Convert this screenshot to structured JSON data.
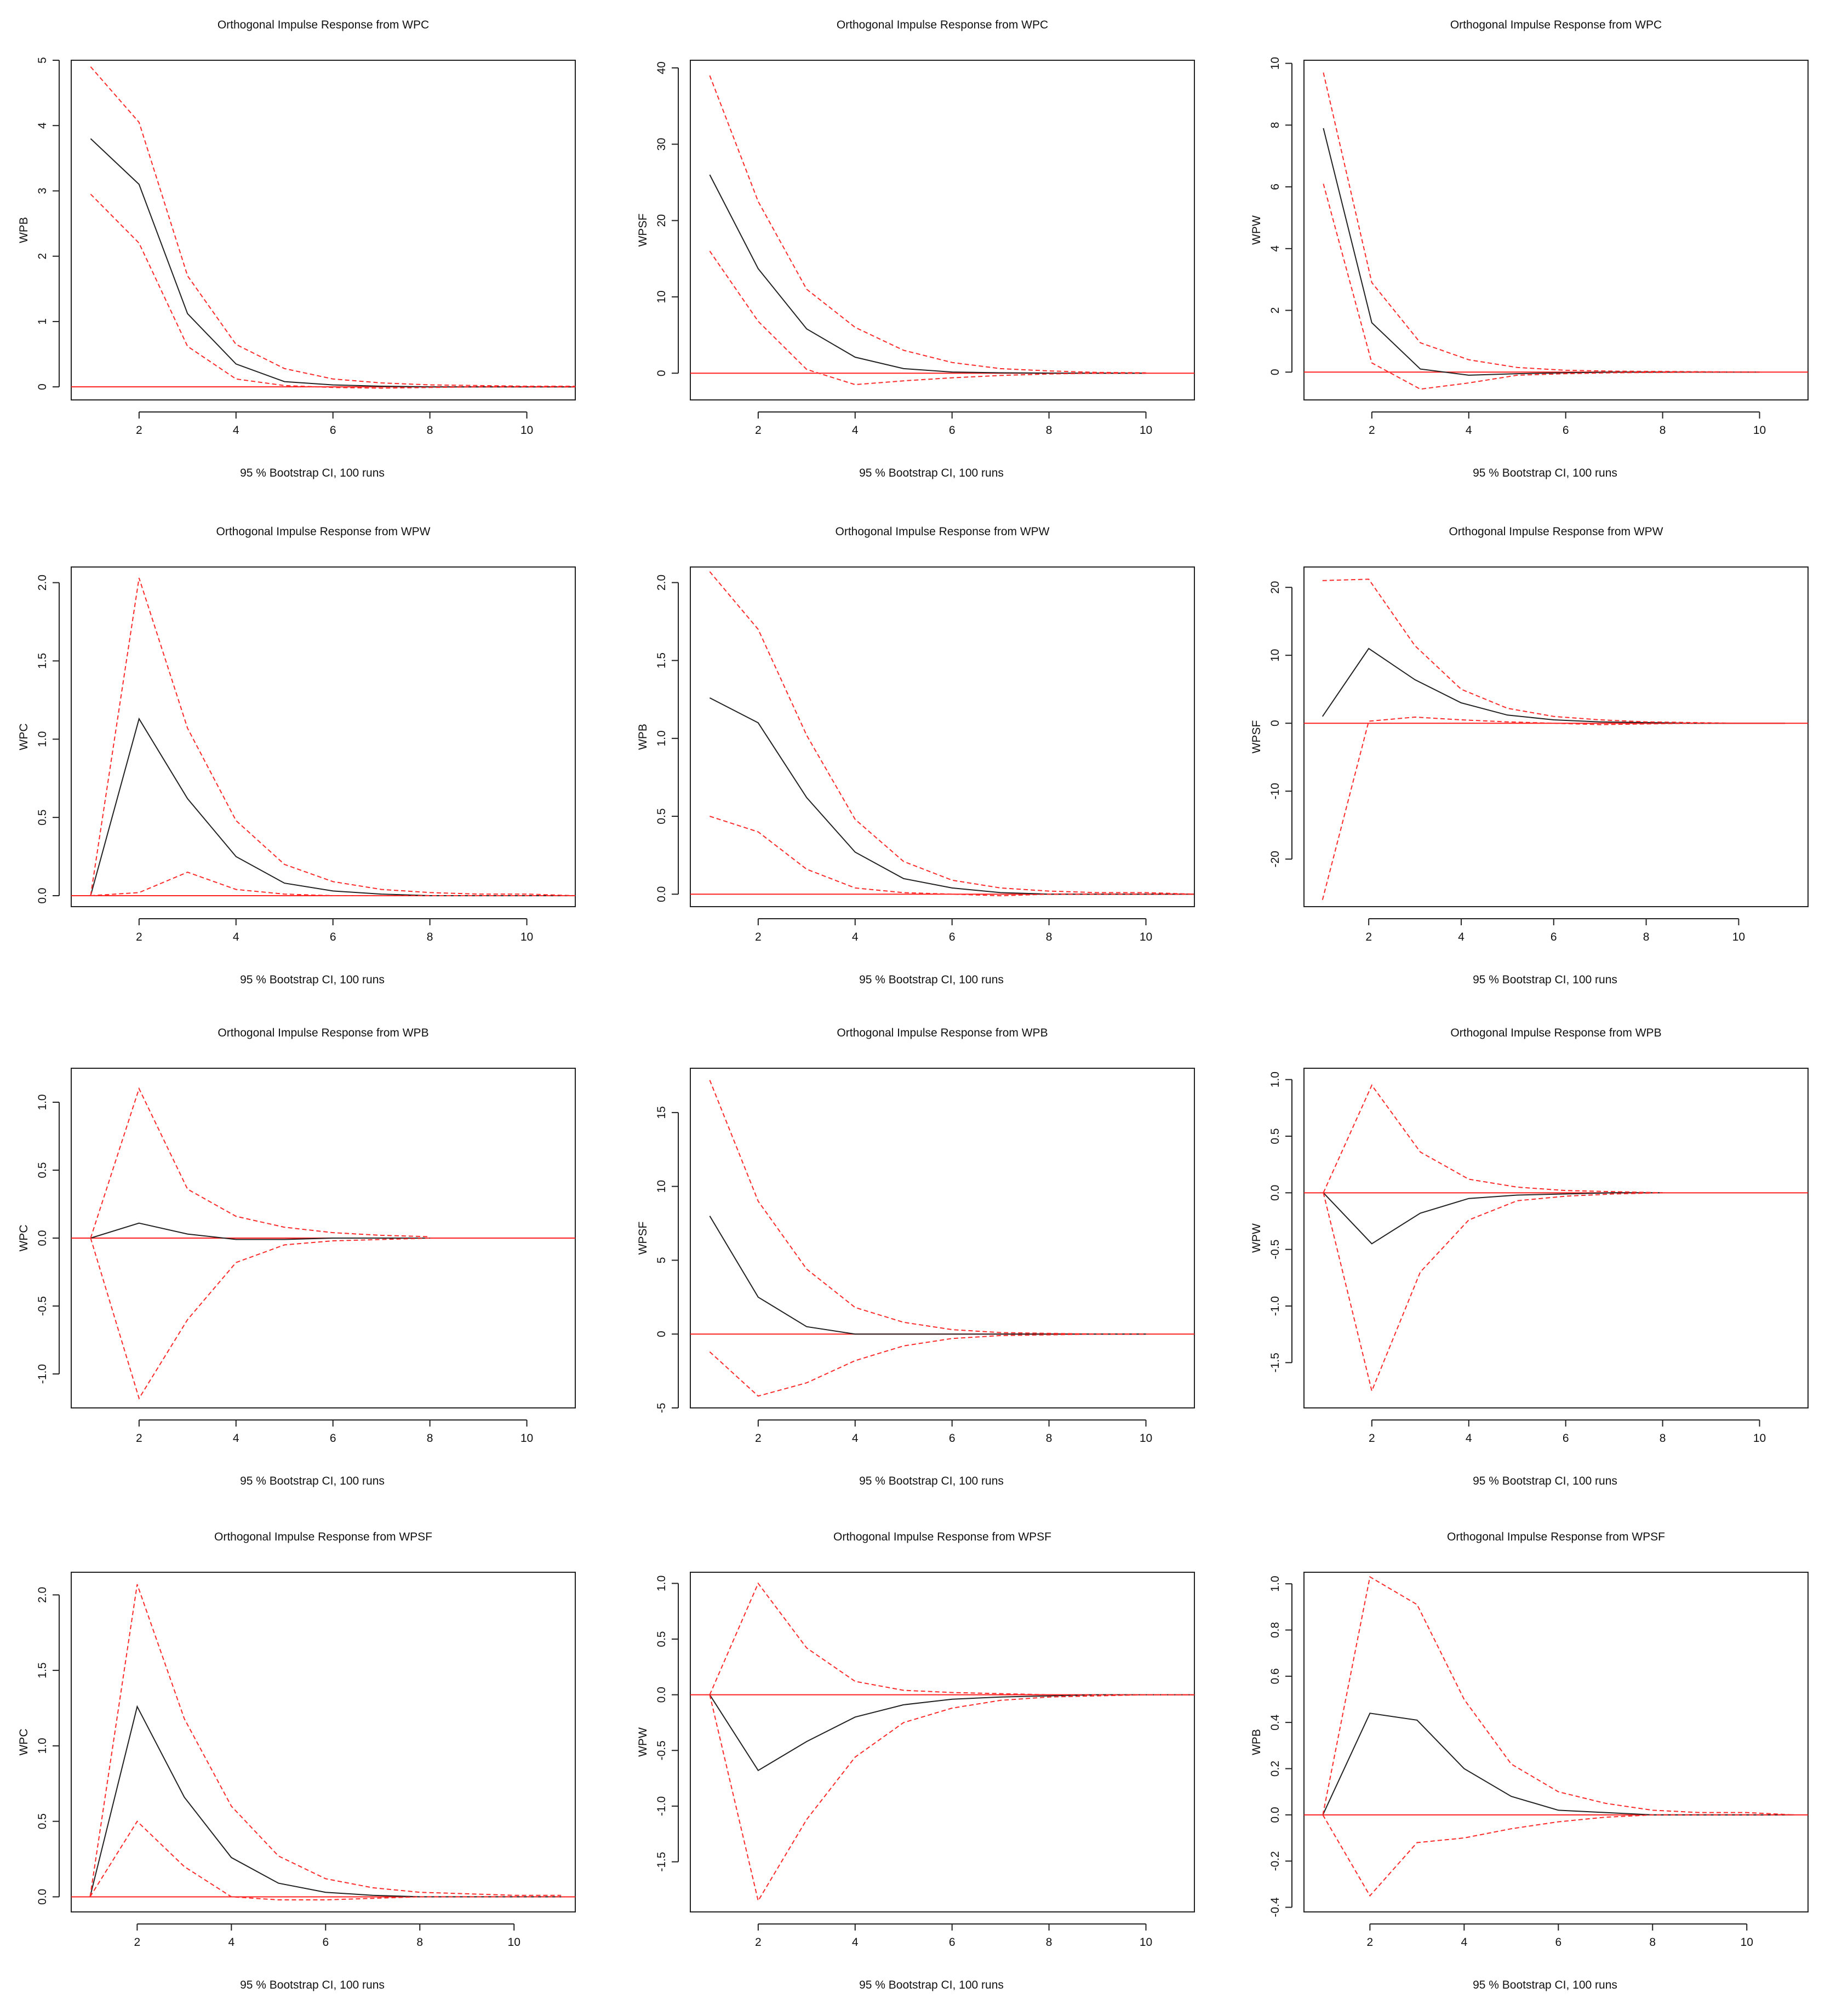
{
  "chart_data": [
    {
      "type": "line",
      "title": "Orthogonal Impulse Response from WPC",
      "ylabel": "WPB",
      "xlabel": "95 % Bootstrap CI,  100 runs",
      "xlim": [
        0.6,
        11
      ],
      "ylim": [
        -0.2,
        5
      ],
      "xticks": [
        2,
        4,
        6,
        8,
        10
      ],
      "yticks": [
        0,
        1,
        2,
        3,
        4,
        5
      ],
      "ytick_labels": [
        "0",
        "1",
        "2",
        "3",
        "4",
        "5"
      ],
      "x": [
        1,
        2,
        3,
        4,
        5,
        6,
        7,
        8,
        9,
        10,
        11
      ],
      "series": [
        {
          "name": "response",
          "values": [
            3.8,
            3.1,
            1.12,
            0.35,
            0.08,
            0.03,
            0.01,
            0,
            0,
            0,
            0
          ]
        },
        {
          "name": "upper",
          "values": [
            4.9,
            4.05,
            1.7,
            0.65,
            0.28,
            0.12,
            0.06,
            0.03,
            0.02,
            0.01,
            0.01
          ]
        },
        {
          "name": "lower",
          "values": [
            2.95,
            2.2,
            0.62,
            0.12,
            0.02,
            -0.01,
            -0.02,
            -0.01,
            0,
            0,
            0
          ]
        }
      ]
    },
    {
      "type": "line",
      "title": "Orthogonal Impulse Response from WPC",
      "ylabel": "WPSF",
      "xlabel": "95 % Bootstrap CI,  100 runs",
      "xlim": [
        0.6,
        11
      ],
      "ylim": [
        -3.5,
        41
      ],
      "xticks": [
        2,
        4,
        6,
        8,
        10
      ],
      "yticks": [
        0,
        10,
        20,
        30,
        40
      ],
      "ytick_labels": [
        "0",
        "10",
        "20",
        "30",
        "40"
      ],
      "x": [
        1,
        2,
        3,
        4,
        5,
        6,
        7,
        8,
        9,
        10
      ],
      "series": [
        {
          "name": "response",
          "values": [
            26,
            13.7,
            5.8,
            2.1,
            0.6,
            0.15,
            0.05,
            0.01,
            0,
            0
          ]
        },
        {
          "name": "upper",
          "values": [
            39,
            22.5,
            11,
            6,
            3,
            1.4,
            0.6,
            0.3,
            0.1,
            0.05
          ]
        },
        {
          "name": "lower",
          "values": [
            16,
            6.8,
            0.5,
            -1.5,
            -1,
            -0.6,
            -0.3,
            -0.1,
            0,
            0
          ]
        }
      ]
    },
    {
      "type": "line",
      "title": "Orthogonal Impulse Response from WPC",
      "ylabel": "WPW",
      "xlabel": "95 % Bootstrap CI,  100 runs",
      "xlim": [
        0.6,
        11
      ],
      "ylim": [
        -0.9,
        10.1
      ],
      "xticks": [
        2,
        4,
        6,
        8,
        10
      ],
      "yticks": [
        0,
        2,
        4,
        6,
        8,
        10
      ],
      "ytick_labels": [
        "0",
        "2",
        "4",
        "6",
        "8",
        "10"
      ],
      "x": [
        1,
        2,
        3,
        4,
        5,
        6,
        7,
        8,
        9,
        10
      ],
      "series": [
        {
          "name": "response",
          "values": [
            7.9,
            1.6,
            0.1,
            -0.1,
            -0.05,
            -0.02,
            0,
            0,
            0,
            0
          ]
        },
        {
          "name": "upper",
          "values": [
            9.7,
            2.9,
            0.95,
            0.4,
            0.15,
            0.06,
            0.03,
            0.02,
            0.01,
            0
          ]
        },
        {
          "name": "lower",
          "values": [
            6.1,
            0.3,
            -0.55,
            -0.35,
            -0.1,
            -0.05,
            -0.02,
            -0.01,
            0,
            0
          ]
        }
      ]
    },
    {
      "type": "line",
      "title": "Orthogonal Impulse Response from WPW",
      "ylabel": "WPC",
      "xlabel": "95 % Bootstrap CI,  100 runs",
      "xlim": [
        0.6,
        11
      ],
      "ylim": [
        -0.07,
        2.1
      ],
      "xticks": [
        2,
        4,
        6,
        8,
        10
      ],
      "yticks": [
        0,
        0.5,
        1,
        1.5,
        2
      ],
      "ytick_labels": [
        "0.0",
        "0.5",
        "1.0",
        "1.5",
        "2.0"
      ],
      "x": [
        1,
        2,
        3,
        4,
        5,
        6,
        7,
        8,
        9,
        10,
        11
      ],
      "series": [
        {
          "name": "response",
          "values": [
            0,
            1.13,
            0.62,
            0.25,
            0.08,
            0.03,
            0.01,
            0,
            0,
            0,
            0
          ]
        },
        {
          "name": "upper",
          "values": [
            0,
            2.03,
            1.07,
            0.48,
            0.2,
            0.09,
            0.04,
            0.02,
            0.01,
            0.01,
            0
          ]
        },
        {
          "name": "lower",
          "values": [
            0,
            0.02,
            0.15,
            0.04,
            0.01,
            0,
            0,
            0,
            0,
            0,
            0
          ]
        }
      ]
    },
    {
      "type": "line",
      "title": "Orthogonal Impulse Response from WPW",
      "ylabel": "WPB",
      "xlabel": "95 % Bootstrap CI,  100 runs",
      "xlim": [
        0.6,
        11
      ],
      "ylim": [
        -0.08,
        2.1
      ],
      "xticks": [
        2,
        4,
        6,
        8,
        10
      ],
      "yticks": [
        0,
        0.5,
        1,
        1.5,
        2
      ],
      "ytick_labels": [
        "0.0",
        "0.5",
        "1.0",
        "1.5",
        "2.0"
      ],
      "x": [
        1,
        2,
        3,
        4,
        5,
        6,
        7,
        8,
        9,
        10,
        11
      ],
      "series": [
        {
          "name": "response",
          "values": [
            1.26,
            1.1,
            0.62,
            0.27,
            0.1,
            0.04,
            0.01,
            0,
            0,
            0,
            0
          ]
        },
        {
          "name": "upper",
          "values": [
            2.07,
            1.7,
            1.02,
            0.48,
            0.21,
            0.09,
            0.04,
            0.02,
            0.01,
            0.01,
            0
          ]
        },
        {
          "name": "lower",
          "values": [
            0.5,
            0.4,
            0.16,
            0.04,
            0.01,
            0,
            -0.01,
            0,
            0,
            0,
            0
          ]
        }
      ]
    },
    {
      "type": "line",
      "title": "Orthogonal Impulse Response from WPW",
      "ylabel": "WPSF",
      "xlabel": "95 % Bootstrap CI,  100 runs",
      "xlim": [
        0.6,
        11.5
      ],
      "ylim": [
        -27,
        23
      ],
      "xticks": [
        2,
        4,
        6,
        8,
        10
      ],
      "yticks": [
        -20,
        -10,
        0,
        10,
        20
      ],
      "ytick_labels": [
        "-20",
        "-10",
        "0",
        "10",
        "20"
      ],
      "x": [
        1,
        2,
        3,
        4,
        5,
        6,
        7,
        8,
        9,
        10,
        11
      ],
      "series": [
        {
          "name": "response",
          "values": [
            1,
            11,
            6.4,
            3,
            1.2,
            0.5,
            0.2,
            0.1,
            0,
            0,
            0
          ]
        },
        {
          "name": "upper",
          "values": [
            21,
            21.2,
            11.4,
            5,
            2.2,
            1,
            0.5,
            0.2,
            0.1,
            0,
            0
          ]
        },
        {
          "name": "lower",
          "values": [
            -26,
            0.3,
            0.9,
            0.5,
            0.2,
            0,
            -0.2,
            -0.1,
            0,
            0,
            0
          ]
        }
      ]
    },
    {
      "type": "line",
      "title": "Orthogonal Impulse Response from WPB",
      "ylabel": "WPC",
      "xlabel": "95 % Bootstrap CI,  100 runs",
      "xlim": [
        0.6,
        11
      ],
      "ylim": [
        -1.25,
        1.25
      ],
      "xticks": [
        2,
        4,
        6,
        8,
        10
      ],
      "yticks": [
        -1,
        -0.5,
        0,
        0.5,
        1
      ],
      "ytick_labels": [
        "-1.0",
        "-0.5",
        "0.0",
        "0.5",
        "1.0"
      ],
      "x": [
        1,
        2,
        3,
        4,
        5,
        6,
        7,
        8
      ],
      "series": [
        {
          "name": "response",
          "values": [
            0,
            0.11,
            0.03,
            -0.01,
            -0.01,
            0,
            0,
            0
          ]
        },
        {
          "name": "upper",
          "values": [
            0,
            1.1,
            0.36,
            0.16,
            0.08,
            0.04,
            0.02,
            0.01
          ]
        },
        {
          "name": "lower",
          "values": [
            0,
            -1.18,
            -0.6,
            -0.18,
            -0.05,
            -0.02,
            -0.01,
            0
          ]
        }
      ]
    },
    {
      "type": "line",
      "title": "Orthogonal Impulse Response from WPB",
      "ylabel": "WPSF",
      "xlabel": "95 % Bootstrap CI,  100 runs",
      "xlim": [
        0.6,
        11
      ],
      "ylim": [
        -5,
        18
      ],
      "xticks": [
        2,
        4,
        6,
        8,
        10
      ],
      "yticks": [
        -5,
        0,
        5,
        10,
        15
      ],
      "ytick_labels": [
        "-5",
        "0",
        "5",
        "10",
        "15"
      ],
      "x": [
        1,
        2,
        3,
        4,
        5,
        6,
        7,
        8,
        9,
        10
      ],
      "series": [
        {
          "name": "response",
          "values": [
            8,
            2.5,
            0.5,
            0,
            0,
            0,
            0,
            0,
            0,
            0
          ]
        },
        {
          "name": "upper",
          "values": [
            17.2,
            9,
            4.4,
            1.8,
            0.8,
            0.3,
            0.1,
            0.05,
            0,
            0
          ]
        },
        {
          "name": "lower",
          "values": [
            -1.2,
            -4.2,
            -3.3,
            -1.8,
            -0.8,
            -0.3,
            -0.1,
            -0.05,
            0,
            0
          ]
        }
      ]
    },
    {
      "type": "line",
      "title": "Orthogonal Impulse Response from WPB",
      "ylabel": "WPW",
      "xlabel": "95 % Bootstrap CI,  100 runs",
      "xlim": [
        0.6,
        11
      ],
      "ylim": [
        -1.9,
        1.1
      ],
      "xticks": [
        2,
        4,
        6,
        8,
        10
      ],
      "yticks": [
        -1.5,
        -1,
        -0.5,
        0,
        0.5,
        1
      ],
      "ytick_labels": [
        "-1.5",
        "-1.0",
        "-0.5",
        "0.0",
        "0.5",
        "1.0"
      ],
      "x": [
        1,
        2,
        3,
        4,
        5,
        6,
        7,
        8
      ],
      "series": [
        {
          "name": "response",
          "values": [
            0,
            -0.45,
            -0.18,
            -0.05,
            -0.02,
            -0.01,
            0,
            0
          ]
        },
        {
          "name": "upper",
          "values": [
            0,
            0.95,
            0.36,
            0.12,
            0.05,
            0.02,
            0.01,
            0
          ]
        },
        {
          "name": "lower",
          "values": [
            0,
            -1.75,
            -0.7,
            -0.24,
            -0.07,
            -0.03,
            -0.01,
            0
          ]
        }
      ]
    },
    {
      "type": "line",
      "title": "Orthogonal Impulse Response from WPSF",
      "ylabel": "WPC",
      "xlabel": "95 % Bootstrap CI,  100 runs",
      "xlim": [
        0.6,
        11.3
      ],
      "ylim": [
        -0.1,
        2.15
      ],
      "xticks": [
        2,
        4,
        6,
        8,
        10
      ],
      "yticks": [
        0,
        0.5,
        1,
        1.5,
        2
      ],
      "ytick_labels": [
        "0.0",
        "0.5",
        "1.0",
        "1.5",
        "2.0"
      ],
      "x": [
        1,
        2,
        3,
        4,
        5,
        6,
        7,
        8,
        9,
        10,
        11
      ],
      "series": [
        {
          "name": "response",
          "values": [
            0,
            1.26,
            0.66,
            0.26,
            0.09,
            0.03,
            0.01,
            0,
            0,
            0,
            0
          ]
        },
        {
          "name": "upper",
          "values": [
            0,
            2.07,
            1.18,
            0.6,
            0.27,
            0.12,
            0.06,
            0.03,
            0.02,
            0.01,
            0.01
          ]
        },
        {
          "name": "lower",
          "values": [
            0,
            0.5,
            0.2,
            0,
            -0.02,
            -0.02,
            -0.01,
            0,
            0,
            0,
            0
          ]
        }
      ]
    },
    {
      "type": "line",
      "title": "Orthogonal Impulse Response from WPSF",
      "ylabel": "WPW",
      "xlabel": "95 % Bootstrap CI,  100 runs",
      "xlim": [
        0.6,
        11
      ],
      "ylim": [
        -1.95,
        1.1
      ],
      "xticks": [
        2,
        4,
        6,
        8,
        10
      ],
      "yticks": [
        -1.5,
        -1,
        -0.5,
        0,
        0.5,
        1
      ],
      "ytick_labels": [
        "-1.5",
        "-1.0",
        "-0.5",
        "0.0",
        "0.5",
        "1.0"
      ],
      "x": [
        1,
        2,
        3,
        4,
        5,
        6,
        7,
        8,
        9,
        10,
        11
      ],
      "series": [
        {
          "name": "response",
          "values": [
            0,
            -0.68,
            -0.42,
            -0.2,
            -0.09,
            -0.04,
            -0.02,
            -0.01,
            0,
            0,
            0
          ]
        },
        {
          "name": "upper",
          "values": [
            0,
            1,
            0.42,
            0.12,
            0.04,
            0.02,
            0.01,
            0,
            0,
            0,
            0
          ]
        },
        {
          "name": "lower",
          "values": [
            0,
            -1.85,
            -1.12,
            -0.56,
            -0.25,
            -0.12,
            -0.05,
            -0.02,
            -0.01,
            0,
            0
          ]
        }
      ]
    },
    {
      "type": "line",
      "title": "Orthogonal Impulse Response from WPSF",
      "ylabel": "WPB",
      "xlabel": "95 % Bootstrap CI,  100 runs",
      "xlim": [
        0.6,
        11.3
      ],
      "ylim": [
        -0.42,
        1.05
      ],
      "xticks": [
        2,
        4,
        6,
        8,
        10
      ],
      "yticks": [
        -0.4,
        -0.2,
        0,
        0.2,
        0.4,
        0.6,
        0.8,
        1
      ],
      "ytick_labels": [
        "-0.4",
        "-0.2",
        "0.0",
        "0.2",
        "0.4",
        "0.6",
        "0.8",
        "1.0"
      ],
      "x": [
        1,
        2,
        3,
        4,
        5,
        6,
        7,
        8,
        9,
        10,
        11
      ],
      "series": [
        {
          "name": "response",
          "values": [
            0,
            0.44,
            0.41,
            0.2,
            0.08,
            0.02,
            0.01,
            0,
            0,
            0,
            0
          ]
        },
        {
          "name": "upper",
          "values": [
            0,
            1.03,
            0.91,
            0.5,
            0.22,
            0.1,
            0.05,
            0.02,
            0.01,
            0.01,
            0
          ]
        },
        {
          "name": "lower",
          "values": [
            0,
            -0.35,
            -0.12,
            -0.1,
            -0.06,
            -0.03,
            -0.01,
            0,
            0,
            0,
            0
          ]
        }
      ]
    }
  ]
}
